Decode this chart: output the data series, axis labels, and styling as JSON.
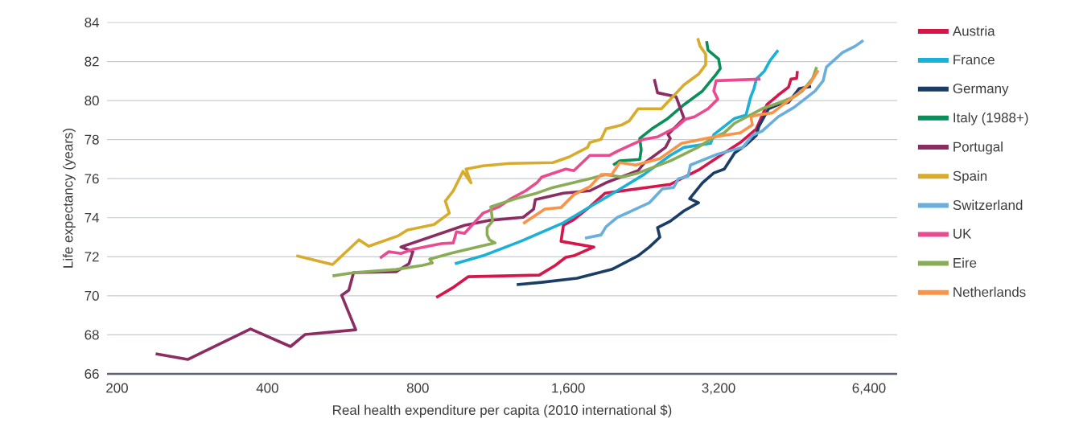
{
  "chart_data": {
    "type": "line",
    "xlabel": "Real health expenditure per capita (2010 international $)",
    "ylabel": "Life expectancy (years)",
    "log": "x",
    "grid": "y",
    "legend": "right",
    "marker": "none",
    "line_style": "solid",
    "xlim": [
      191,
      7290
    ],
    "xticks": [
      200,
      400,
      800,
      {
        "value": 1600,
        "label": "1,600"
      },
      {
        "value": 3200,
        "label": "3,200"
      },
      {
        "value": 6400,
        "label": "6,400"
      }
    ],
    "ylim": [
      66,
      84
    ],
    "yticks": [
      66,
      68,
      70,
      72,
      74,
      76,
      78,
      80,
      82,
      84
    ],
    "series": [
      {
        "name": "Austria",
        "color": "#d6164a",
        "x": [
          871,
          938,
          1010,
          1400,
          1508,
          1582,
          1642,
          1801,
          1548,
          1565,
          1642,
          1768,
          1897,
          2561,
          2938,
          3285,
          3536,
          3808,
          3998,
          4211,
          4418,
          4466,
          4585,
          4601
        ],
        "values": [
          69.91,
          70.4,
          70.98,
          71.06,
          71.56,
          71.97,
          72.05,
          72.5,
          72.79,
          73.61,
          73.9,
          74.56,
          75.26,
          75.71,
          76.49,
          77.32,
          77.85,
          78.55,
          79.79,
          80.28,
          80.69,
          81.1,
          81.14,
          81.51
        ]
      },
      {
        "name": "France",
        "color": "#1bb0d8",
        "x": [
          949,
          1080,
          1285,
          1565,
          1768,
          2006,
          2267,
          2561,
          2728,
          3084,
          3130,
          3446,
          3630,
          3712,
          3767,
          3808,
          3952,
          4056,
          4211
        ],
        "values": [
          71.64,
          72.05,
          72.79,
          73.74,
          74.56,
          75.38,
          76.21,
          77.19,
          77.6,
          77.81,
          78.26,
          79.09,
          79.25,
          80.2,
          80.61,
          81.1,
          81.51,
          82.05,
          82.58
        ]
      },
      {
        "name": "Germany",
        "color": "#1a3d68",
        "x": [
          1262,
          1416,
          1667,
          1955,
          2208,
          2327,
          2441,
          2415,
          2561,
          2728,
          2917,
          2800,
          2971,
          3130,
          3285,
          3446,
          3630,
          3808,
          3852,
          4028,
          4211,
          4418,
          4636,
          4901
        ],
        "values": [
          70.57,
          70.69,
          70.9,
          71.35,
          72.05,
          72.5,
          73.0,
          73.49,
          73.82,
          74.35,
          74.77,
          74.97,
          75.79,
          76.29,
          76.49,
          77.32,
          77.73,
          78.22,
          78.67,
          79.58,
          79.79,
          79.91,
          80.61,
          80.73
        ]
      },
      {
        "name": "Italy (1988+)",
        "color": "#0b8f5a",
        "x": [
          1969,
          2028,
          2225,
          2240,
          2225,
          2352,
          2534,
          2728,
          2971,
          3164,
          3225,
          3200,
          3048,
          3028
        ],
        "values": [
          76.7,
          76.91,
          76.99,
          77.48,
          78.06,
          78.55,
          79.09,
          79.79,
          80.49,
          81.35,
          81.64,
          82.13,
          82.58,
          83.04
        ]
      },
      {
        "name": "Portugal",
        "color": "#8b2d62",
        "x": [
          239,
          277,
          370,
          445,
          476,
          601,
          563,
          582,
          595,
          724,
          768,
          782,
          740,
          992,
          1109,
          1300,
          1364,
          1375,
          1565,
          1768,
          1904,
          2208,
          2267,
          2505,
          2561,
          2534,
          2728,
          2630,
          2415,
          2379
        ],
        "values": [
          67.03,
          66.74,
          68.3,
          67.4,
          68.02,
          68.26,
          70.03,
          70.28,
          71.19,
          71.23,
          71.64,
          72.26,
          72.5,
          73.61,
          73.86,
          74.02,
          74.44,
          74.93,
          75.26,
          75.38,
          75.79,
          76.41,
          76.78,
          77.6,
          78.06,
          78.26,
          79.09,
          80.2,
          80.4,
          81.1
        ]
      },
      {
        "name": "Spain",
        "color": "#d9ab2b",
        "x": [
          457,
          540,
          610,
          638,
          732,
          763,
          862,
          925,
          908,
          942,
          985,
          1022,
          999,
          1080,
          1221,
          1491,
          1606,
          1749,
          1768,
          1862,
          1904,
          2051,
          2120,
          2208,
          2459,
          2728,
          2917,
          3015,
          3015,
          2938,
          2906
        ],
        "values": [
          72.05,
          71.6,
          72.87,
          72.54,
          73.08,
          73.37,
          73.65,
          74.23,
          74.85,
          75.38,
          76.37,
          75.79,
          76.49,
          76.66,
          76.78,
          76.82,
          77.11,
          77.6,
          77.85,
          78.02,
          78.55,
          78.76,
          78.96,
          79.58,
          79.58,
          80.81,
          81.35,
          81.84,
          82.38,
          82.79,
          83.2
        ]
      },
      {
        "name": "Switzerland",
        "color": "#6aaede",
        "x": [
          1729,
          1862,
          1904,
          2006,
          2129,
          2327,
          2469,
          2601,
          2660,
          2780,
          2811,
          3164,
          3576,
          3740,
          3910,
          4211,
          4535,
          4993,
          5181,
          5260,
          5664,
          6008,
          6236
        ],
        "values": [
          72.95,
          73.12,
          73.53,
          74.02,
          74.31,
          74.77,
          75.47,
          75.55,
          76.0,
          76.12,
          76.7,
          77.23,
          77.6,
          78.22,
          78.43,
          79.17,
          79.66,
          80.49,
          81.02,
          81.72,
          82.46,
          82.79,
          83.08
        ]
      },
      {
        "name": "UK",
        "color": "#ea4a8f",
        "x": [
          672,
          700,
          740,
          782,
          891,
          942,
          956,
          992,
          1080,
          1163,
          1221,
          1315,
          1385,
          1416,
          1582,
          1642,
          1768,
          1934,
          2006,
          2105,
          2267,
          2415,
          2630,
          2749,
          2864,
          3048,
          3188,
          3130,
          3164,
          3880
        ],
        "values": [
          71.93,
          72.26,
          72.17,
          72.38,
          72.67,
          72.71,
          73.28,
          73.2,
          74.23,
          74.56,
          74.93,
          75.38,
          75.79,
          76.08,
          76.49,
          76.41,
          77.19,
          77.19,
          77.4,
          77.65,
          78.02,
          78.14,
          78.63,
          79.05,
          79.17,
          79.58,
          80.07,
          80.49,
          81.02,
          81.1
        ]
      },
      {
        "name": "Eire",
        "color": "#8aac57",
        "x": [
          540,
          597,
          724,
          818,
          855,
          845,
          942,
          1142,
          1113,
          1101,
          1101,
          1129,
          1120,
          1253,
          1385,
          1491,
          1768,
          1904,
          2051,
          2208,
          2561,
          2906,
          3084,
          3285,
          3446,
          3910,
          4257,
          4535,
          4706,
          4938,
          5028
        ],
        "values": [
          71.02,
          71.19,
          71.35,
          71.56,
          71.68,
          71.88,
          72.21,
          72.71,
          72.87,
          73.12,
          73.49,
          73.82,
          74.56,
          74.97,
          75.26,
          75.55,
          76.0,
          76.21,
          76.08,
          76.29,
          76.91,
          77.6,
          78.02,
          78.35,
          78.84,
          79.58,
          79.91,
          80.2,
          80.49,
          81.14,
          81.72
        ]
      },
      {
        "name": "Netherlands",
        "color": "#f7944a",
        "x": [
          1300,
          1437,
          1548,
          1642,
          1768,
          1862,
          1955,
          2028,
          2184,
          2441,
          2698,
          3130,
          3536,
          3740,
          3712,
          3808,
          4102,
          4305,
          4636,
          4884,
          5066
        ],
        "values": [
          73.7,
          74.44,
          74.52,
          75.18,
          75.59,
          76.21,
          76.21,
          76.82,
          76.7,
          77.03,
          77.81,
          78.14,
          78.35,
          78.76,
          79.17,
          79.25,
          79.37,
          79.79,
          80.4,
          80.9,
          81.56
        ]
      }
    ]
  }
}
